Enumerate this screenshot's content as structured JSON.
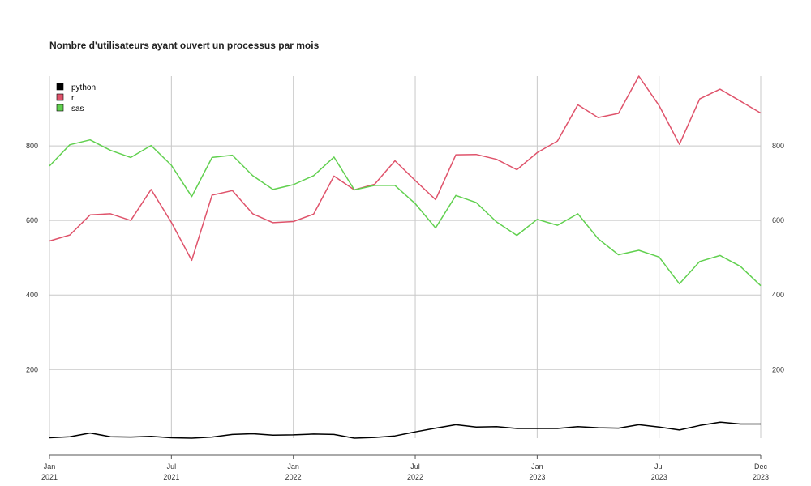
{
  "chart_data": {
    "type": "line",
    "title": "Nombre d'utilisateurs ayant ouvert un processus par mois",
    "xlabel": "",
    "ylabel": "",
    "x": [
      "2021-01",
      "2021-02",
      "2021-03",
      "2021-04",
      "2021-05",
      "2021-06",
      "2021-07",
      "2021-08",
      "2021-09",
      "2021-10",
      "2021-11",
      "2021-12",
      "2022-01",
      "2022-02",
      "2022-03",
      "2022-04",
      "2022-05",
      "2022-06",
      "2022-07",
      "2022-08",
      "2022-09",
      "2022-10",
      "2022-11",
      "2022-12",
      "2023-01",
      "2023-02",
      "2023-03",
      "2023-04",
      "2023-05",
      "2023-06",
      "2023-07",
      "2023-08",
      "2023-09",
      "2023-10",
      "2023-11",
      "2023-12"
    ],
    "x_ticks": [
      {
        "date": "2021-01",
        "month": "Jan",
        "year": "2021"
      },
      {
        "date": "2021-07",
        "month": "Jul",
        "year": "2021"
      },
      {
        "date": "2022-01",
        "month": "Jan",
        "year": "2022"
      },
      {
        "date": "2022-07",
        "month": "Jul",
        "year": "2022"
      },
      {
        "date": "2023-01",
        "month": "Jan",
        "year": "2023"
      },
      {
        "date": "2023-07",
        "month": "Jul",
        "year": "2023"
      },
      {
        "date": "2023-12",
        "month": "Dec",
        "year": "2023"
      }
    ],
    "y_ticks": [
      200,
      400,
      600,
      800
    ],
    "ylim": [
      16,
      987
    ],
    "grid": true,
    "legend_position": "top-left",
    "series": [
      {
        "name": "python",
        "color": "#000000",
        "values": [
          17,
          20,
          30,
          20,
          19,
          21,
          17,
          16,
          19,
          26,
          28,
          24,
          25,
          27,
          26,
          16,
          18,
          22,
          33,
          43,
          52,
          46,
          47,
          42,
          42,
          42,
          47,
          44,
          43,
          52,
          46,
          38,
          50,
          59,
          54,
          54
        ]
      },
      {
        "name": "r",
        "color": "#df536b",
        "values": [
          545,
          561,
          615,
          618,
          600,
          683,
          595,
          493,
          668,
          680,
          618,
          594,
          597,
          617,
          719,
          682,
          697,
          760,
          707,
          656,
          776,
          777,
          764,
          736,
          782,
          813,
          910,
          876,
          887,
          987,
          908,
          804,
          926,
          952,
          920,
          888
        ]
      },
      {
        "name": "sas",
        "color": "#61d04f",
        "values": [
          746,
          803,
          816,
          788,
          769,
          801,
          748,
          664,
          769,
          775,
          720,
          683,
          696,
          720,
          770,
          682,
          694,
          694,
          645,
          580,
          667,
          648,
          596,
          560,
          603,
          587,
          618,
          551,
          508,
          520,
          502,
          430,
          490,
          506,
          477,
          425
        ]
      }
    ]
  }
}
